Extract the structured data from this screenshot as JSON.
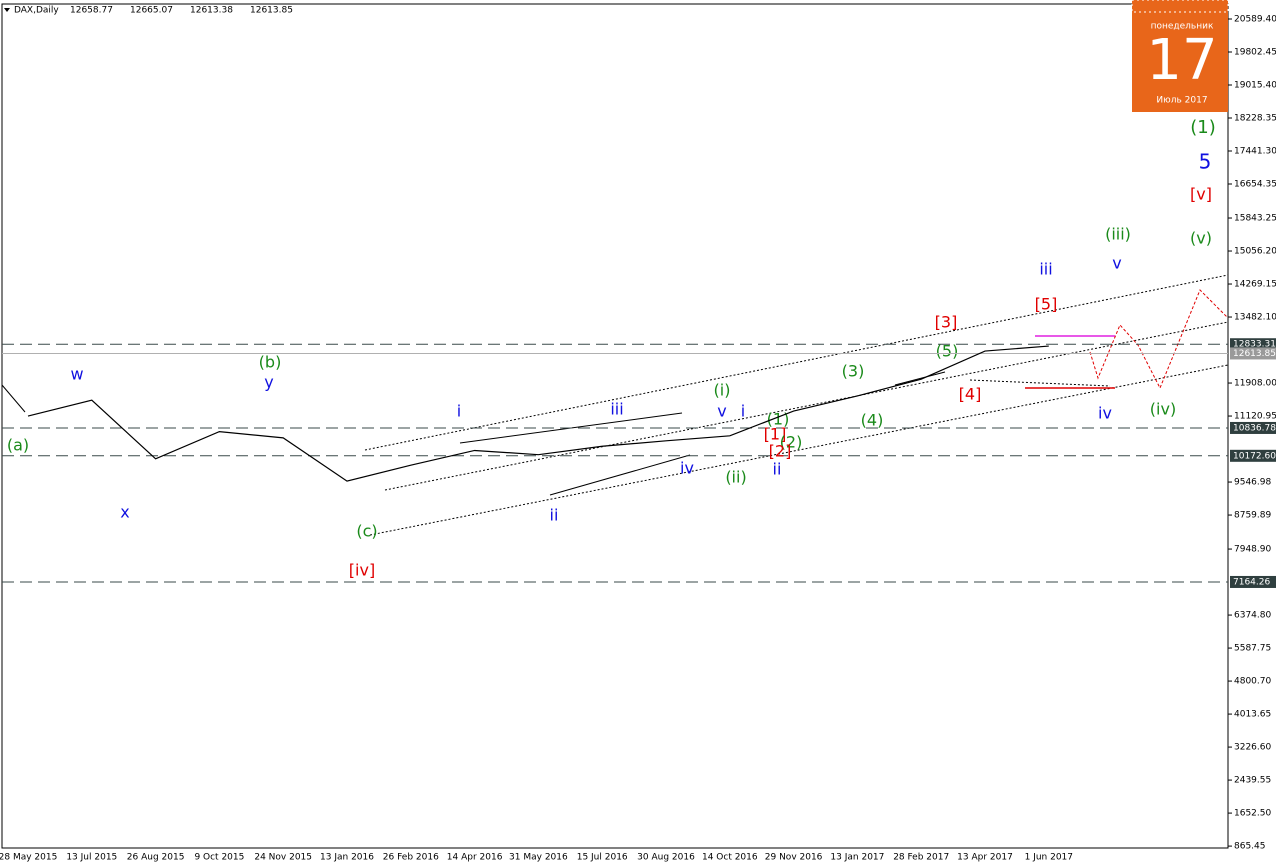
{
  "chart_data": {
    "type": "line",
    "symbol": "DAX,Daily",
    "ohlc": [
      12658.77,
      12665.07,
      12613.38,
      12613.85
    ],
    "x": [
      "28 May 2015",
      "13 Jul 2015",
      "26 Aug 2015",
      "9 Oct 2015",
      "24 Nov 2015",
      "13 Jan 2016",
      "26 Feb 2016",
      "14 Apr 2016",
      "31 May 2016",
      "15 Jul 2016",
      "30 Aug 2016",
      "14 Oct 2016",
      "29 Nov 2016",
      "13 Jan 2017",
      "28 Feb 2017",
      "13 Apr 2017",
      "1 Jun 2017"
    ],
    "series": [
      {
        "name": "DAX",
        "color": "#000000",
        "values": [
          11120,
          11500,
          10100,
          10750,
          10600,
          9570,
          9950,
          10300,
          10200,
          10400,
          10530,
          10650,
          11240,
          11600,
          12000,
          12670,
          12790
        ]
      }
    ],
    "ylim": [
      820,
      20947
    ],
    "yticks": [
      {
        "value": 865.45,
        "label": "865.45"
      },
      {
        "value": 1652.5,
        "label": "1652.50"
      },
      {
        "value": 2439.55,
        "label": "2439.55"
      },
      {
        "value": 3226.6,
        "label": "3226.60"
      },
      {
        "value": 4013.65,
        "label": "4013.65"
      },
      {
        "value": 4800.7,
        "label": "4800.70"
      },
      {
        "value": 5587.75,
        "label": "5587.75"
      },
      {
        "value": 6374.8,
        "label": "6374.80"
      },
      {
        "value": 7948.9,
        "label": "7948.90"
      },
      8759.89,
      9546.98,
      11120.95,
      {
        "value": 11908,
        "label": "11908.00"
      },
      {
        "value": 13482.1,
        "label": "13482.10"
      },
      14269.15,
      {
        "value": 15056.2,
        "label": "15056.20"
      },
      15843.25,
      16654.35,
      {
        "value": 17441.3,
        "label": "17441.30"
      },
      18228.35,
      {
        "value": 19015.4,
        "label": "19015.40"
      },
      19802.45,
      {
        "value": 20589.4,
        "label": "20589.40"
      }
    ],
    "levels": [
      12833.31,
      10836.78,
      {
        "value": 10172.6,
        "label": "10172.60"
      },
      7164.26
    ],
    "last_price": 12613.85,
    "calendar": {
      "weekday": "понедельник",
      "day": "17",
      "month": "Июль 2017"
    },
    "annotations": [
      "(a)",
      "w",
      "x",
      "(b)",
      "y",
      "(c)",
      "[iv]",
      "i",
      "ii",
      "iii",
      "iv",
      "v",
      "i",
      "(i)",
      "(ii)",
      "(1)",
      "[1]",
      "(2)",
      "[2]",
      "ii",
      "(3)",
      "(4)",
      "[3]",
      "(5)",
      "[4]",
      "iii",
      "[5]",
      "v",
      "(iii)",
      "iv",
      "(iv)",
      "(v)",
      "[v]",
      "5",
      "(1)"
    ]
  }
}
